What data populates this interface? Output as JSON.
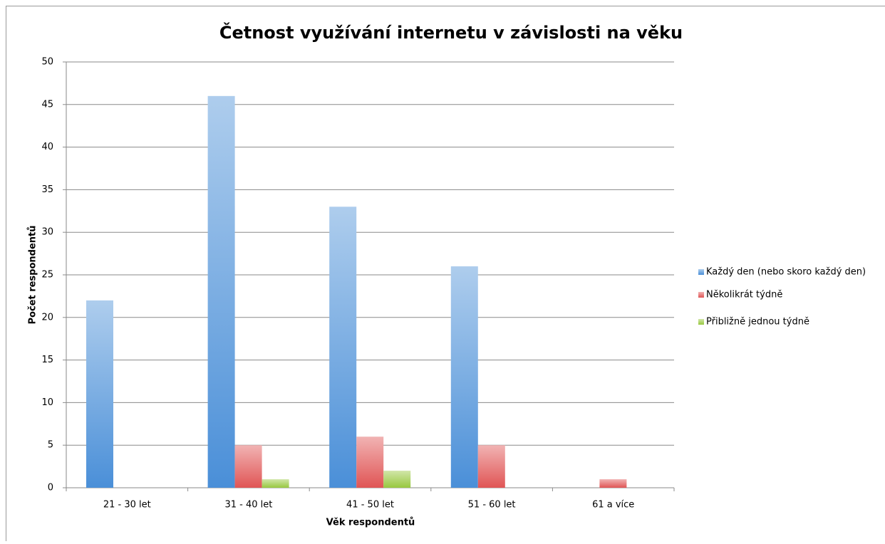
{
  "chart_data": {
    "type": "bar",
    "title": "Četnost využívání internetu v závislosti na věku",
    "x_label": "Věk respondentů",
    "y_label": "Počet respondentů",
    "categories": [
      "21 - 30 let",
      "31 - 40 let",
      "41 - 50 let",
      "51 - 60 let",
      "61 a více"
    ],
    "series": [
      {
        "name": "Každý den (nebo skoro každý den)",
        "color": "#4a8fd8",
        "values": [
          22,
          46,
          33,
          26,
          0
        ]
      },
      {
        "name": "Několikrát týdně",
        "color": "#e05555",
        "values": [
          0,
          5,
          6,
          5,
          1
        ]
      },
      {
        "name": "Přibližně jednou týdně",
        "color": "#98c840",
        "values": [
          0,
          1,
          2,
          0,
          0
        ]
      }
    ],
    "ylim": [
      0,
      50
    ],
    "yticks": [
      0,
      5,
      10,
      15,
      20,
      25,
      30,
      35,
      40,
      45,
      50
    ],
    "grid": true,
    "legend": "right"
  }
}
